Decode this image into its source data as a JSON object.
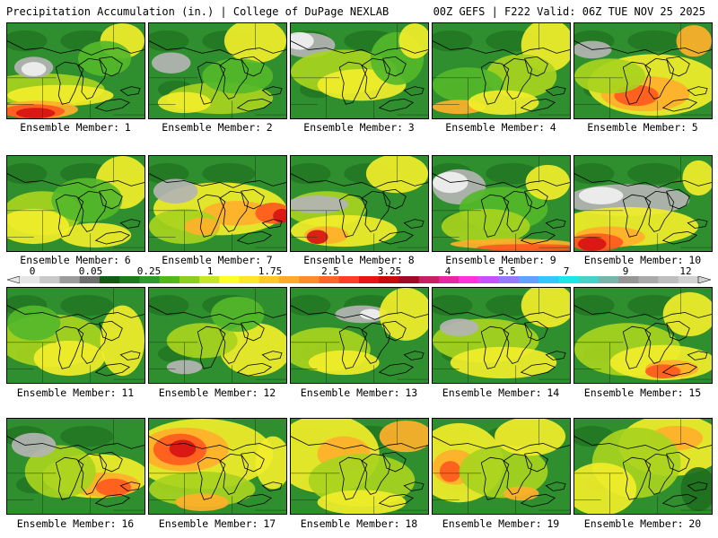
{
  "header": {
    "left_title": "Precipitation Accumulation (in.) | College of DuPage NEXLAB",
    "right_title": "00Z GEFS | F222 Valid: 06Z TUE NOV 25 2025"
  },
  "colorbar": {
    "tick_labels": [
      "0",
      "0.05",
      "0.25",
      "1",
      "1.75",
      "2.5",
      "3.25",
      "4",
      "5.5",
      "7",
      "9",
      "12"
    ],
    "colors": [
      "#e6e6e6",
      "#c8c8c8",
      "#9c9c9c",
      "#6e6e6e",
      "#145a14",
      "#1e7a1e",
      "#2e9a2e",
      "#52b81a",
      "#8cce1e",
      "#c8e628",
      "#ffff28",
      "#ffe628",
      "#ffc828",
      "#ffaa28",
      "#ff8c28",
      "#ff6428",
      "#ff3c28",
      "#e61414",
      "#c80a0a",
      "#a00a28",
      "#c81e64",
      "#e628a0",
      "#ff32dc",
      "#c850ff",
      "#9678ff",
      "#64a0ff",
      "#32c8ff",
      "#1ee6e6",
      "#46d2c8",
      "#78b4aa",
      "#969696",
      "#aaaaaa",
      "#bebebe",
      "#d2d2d2"
    ]
  },
  "map_colors": {
    "background": "#2f8f2f",
    "dark_green": "#1f6f1f",
    "light_green": "#55b82a",
    "yellow_green": "#a8d41e",
    "yellow": "#f2ee2a",
    "orange": "#ffb02a",
    "red_orange": "#ff5a1e",
    "red": "#d81414",
    "gray": "#b4b4b4",
    "white": "#f0f0f0",
    "coastline": "#000000"
  },
  "caption_label": "Ensemble Member:",
  "members": [
    {
      "number": "1"
    },
    {
      "number": "2"
    },
    {
      "number": "3"
    },
    {
      "number": "4"
    },
    {
      "number": "5"
    },
    {
      "number": "6"
    },
    {
      "number": "7"
    },
    {
      "number": "8"
    },
    {
      "number": "9"
    },
    {
      "number": "10"
    },
    {
      "number": "11"
    },
    {
      "number": "12"
    },
    {
      "number": "13"
    },
    {
      "number": "14"
    },
    {
      "number": "15"
    },
    {
      "number": "16"
    },
    {
      "number": "17"
    },
    {
      "number": "18"
    },
    {
      "number": "19"
    },
    {
      "number": "20"
    }
  ]
}
